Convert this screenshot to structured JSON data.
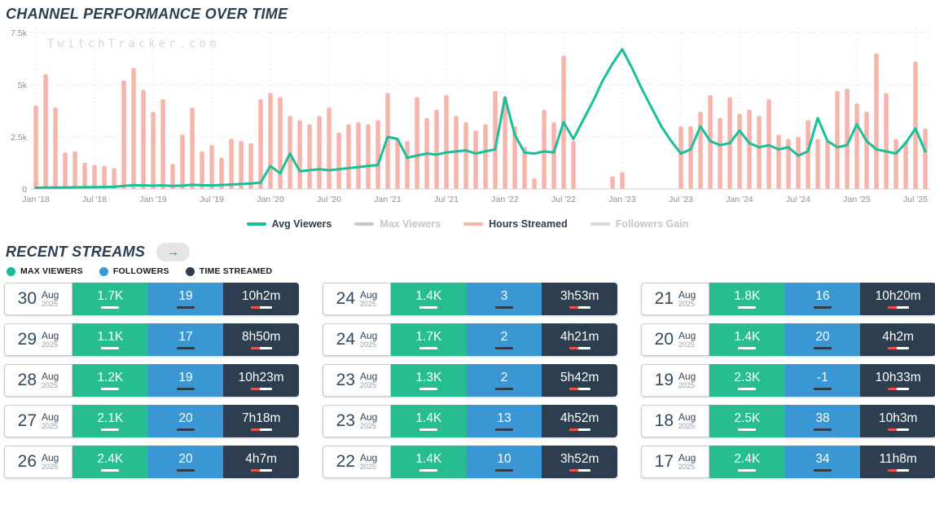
{
  "page": {
    "title": "CHANNEL PERFORMANCE OVER TIME",
    "watermark": "TwitchTracker.com"
  },
  "chart_data": {
    "type": "bar+line",
    "months": [
      "Jan '18",
      "Feb '18",
      "Mar '18",
      "Apr '18",
      "May '18",
      "Jun '18",
      "Jul '18",
      "Aug '18",
      "Sep '18",
      "Oct '18",
      "Nov '18",
      "Dec '18",
      "Jan '19",
      "Feb '19",
      "Mar '19",
      "Apr '19",
      "May '19",
      "Jun '19",
      "Jul '19",
      "Aug '19",
      "Sep '19",
      "Oct '19",
      "Nov '19",
      "Dec '19",
      "Jan '20",
      "Feb '20",
      "Mar '20",
      "Apr '20",
      "May '20",
      "Jun '20",
      "Jul '20",
      "Aug '20",
      "Sep '20",
      "Oct '20",
      "Nov '20",
      "Dec '20",
      "Jan '21",
      "Feb '21",
      "Mar '21",
      "Apr '21",
      "May '21",
      "Jun '21",
      "Jul '21",
      "Aug '21",
      "Sep '21",
      "Oct '21",
      "Nov '21",
      "Dec '21",
      "Jan '22",
      "Feb '22",
      "Mar '22",
      "Apr '22",
      "May '22",
      "Jun '22",
      "Jul '22",
      "Aug '22",
      "Sep '22",
      "Oct '22",
      "Nov '22",
      "Dec '22",
      "Jan '23",
      "Feb '23",
      "Mar '23",
      "Apr '23",
      "May '23",
      "Jun '23",
      "Jul '23",
      "Aug '23",
      "Sep '23",
      "Oct '23",
      "Nov '23",
      "Dec '23",
      "Jan '24",
      "Feb '24",
      "Mar '24",
      "Apr '24",
      "May '24",
      "Jun '24",
      "Jul '24",
      "Aug '24",
      "Sep '24",
      "Oct '24",
      "Nov '24",
      "Dec '24",
      "Jan '25",
      "Feb '25",
      "Mar '25",
      "Apr '25",
      "May '25",
      "Jun '25",
      "Jul '25",
      "Aug '25"
    ],
    "series": [
      {
        "name": "Hours Streamed",
        "type": "bar",
        "color": "#f8b3ab",
        "values": [
          4000,
          5500,
          3900,
          1750,
          1800,
          1250,
          1150,
          1100,
          1000,
          5200,
          5800,
          4750,
          3700,
          4300,
          1200,
          2600,
          3900,
          1800,
          2100,
          1500,
          2400,
          2300,
          2200,
          4300,
          4600,
          4400,
          3500,
          3300,
          3100,
          3500,
          3900,
          2700,
          3100,
          3200,
          3100,
          3300,
          4600,
          2400,
          2300,
          4400,
          3400,
          3800,
          4500,
          3500,
          3200,
          2800,
          3100,
          4700,
          4400,
          3000,
          2000,
          500,
          3800,
          3200,
          6400,
          2300,
          0,
          0,
          0,
          600,
          800,
          0,
          0,
          0,
          0,
          0,
          3000,
          3000,
          3700,
          4500,
          3400,
          4400,
          3600,
          3800,
          3500,
          4300,
          2600,
          2400,
          2500,
          3300,
          2400,
          2300,
          4700,
          4800,
          4100,
          3700,
          6500,
          4600,
          2400,
          2300,
          6100,
          2900
        ]
      },
      {
        "name": "Avg Viewers",
        "type": "line",
        "color": "#1abf99",
        "values": [
          60,
          65,
          70,
          75,
          80,
          85,
          90,
          95,
          100,
          150,
          180,
          170,
          160,
          170,
          150,
          160,
          200,
          180,
          170,
          190,
          210,
          240,
          260,
          300,
          1100,
          750,
          1700,
          850,
          900,
          950,
          900,
          950,
          1000,
          1050,
          1100,
          1150,
          2500,
          2400,
          1500,
          1600,
          1700,
          1650,
          1750,
          1800,
          1850,
          1700,
          1800,
          1900,
          4400,
          2600,
          1750,
          1700,
          1800,
          1750,
          3200,
          2400,
          3300,
          4200,
          5200,
          6000,
          6700,
          5800,
          4800,
          3900,
          3000,
          2300,
          1700,
          1900,
          3000,
          2300,
          2100,
          2200,
          2800,
          2200,
          2000,
          2100,
          1900,
          2000,
          1600,
          1800,
          3400,
          2300,
          2000,
          2100,
          3100,
          2300,
          1900,
          1800,
          1700,
          2200,
          2900,
          1800
        ]
      }
    ],
    "ylim": [
      0,
      7500
    ],
    "yticks": [
      {
        "v": 0,
        "label": "0"
      },
      {
        "v": 2500,
        "label": "2.5k"
      },
      {
        "v": 5000,
        "label": "5k"
      },
      {
        "v": 7500,
        "label": "7.5k"
      }
    ],
    "grid": true,
    "legend_position": "bottom",
    "legend": [
      {
        "label": "Avg Viewers",
        "color": "#1abf99",
        "active": true
      },
      {
        "label": "Max Viewers",
        "color": "#c3c8cd",
        "active": false
      },
      {
        "label": "Hours Streamed",
        "color": "#f8b3ab",
        "active": true
      },
      {
        "label": "Followers Gain",
        "color": "#d8dbde",
        "active": false
      }
    ]
  },
  "recent": {
    "title": "RECENT STREAMS",
    "arrow": "→",
    "legend": [
      {
        "label": "MAX VIEWERS",
        "color": "#1bbc9b"
      },
      {
        "label": "FOLLOWERS",
        "color": "#3498db"
      },
      {
        "label": "TIME STREAMED",
        "color": "#2c3e50"
      }
    ],
    "columns": [
      [
        {
          "day": "30",
          "month": "Aug",
          "year": "2025",
          "max_viewers": "1.7K",
          "followers": "19",
          "time": "10h2m"
        },
        {
          "day": "29",
          "month": "Aug",
          "year": "2025",
          "max_viewers": "1.1K",
          "followers": "17",
          "time": "8h50m"
        },
        {
          "day": "28",
          "month": "Aug",
          "year": "2025",
          "max_viewers": "1.2K",
          "followers": "19",
          "time": "10h23m"
        },
        {
          "day": "27",
          "month": "Aug",
          "year": "2025",
          "max_viewers": "2.1K",
          "followers": "20",
          "time": "7h18m"
        },
        {
          "day": "26",
          "month": "Aug",
          "year": "2025",
          "max_viewers": "2.4K",
          "followers": "20",
          "time": "4h7m"
        }
      ],
      [
        {
          "day": "24",
          "month": "Aug",
          "year": "2025",
          "max_viewers": "1.4K",
          "followers": "3",
          "time": "3h53m"
        },
        {
          "day": "24",
          "month": "Aug",
          "year": "2025",
          "max_viewers": "1.7K",
          "followers": "2",
          "time": "4h21m"
        },
        {
          "day": "23",
          "month": "Aug",
          "year": "2025",
          "max_viewers": "1.3K",
          "followers": "2",
          "time": "5h42m"
        },
        {
          "day": "23",
          "month": "Aug",
          "year": "2025",
          "max_viewers": "1.4K",
          "followers": "13",
          "time": "4h52m"
        },
        {
          "day": "22",
          "month": "Aug",
          "year": "2025",
          "max_viewers": "1.4K",
          "followers": "10",
          "time": "3h52m"
        }
      ],
      [
        {
          "day": "21",
          "month": "Aug",
          "year": "2025",
          "max_viewers": "1.8K",
          "followers": "16",
          "time": "10h20m"
        },
        {
          "day": "20",
          "month": "Aug",
          "year": "2025",
          "max_viewers": "1.4K",
          "followers": "20",
          "time": "4h2m"
        },
        {
          "day": "19",
          "month": "Aug",
          "year": "2025",
          "max_viewers": "2.3K",
          "followers": "-1",
          "time": "10h33m"
        },
        {
          "day": "18",
          "month": "Aug",
          "year": "2025",
          "max_viewers": "2.5K",
          "followers": "38",
          "time": "10h3m"
        },
        {
          "day": "17",
          "month": "Aug",
          "year": "2025",
          "max_viewers": "2.4K",
          "followers": "34",
          "time": "11h8m"
        }
      ]
    ]
  }
}
